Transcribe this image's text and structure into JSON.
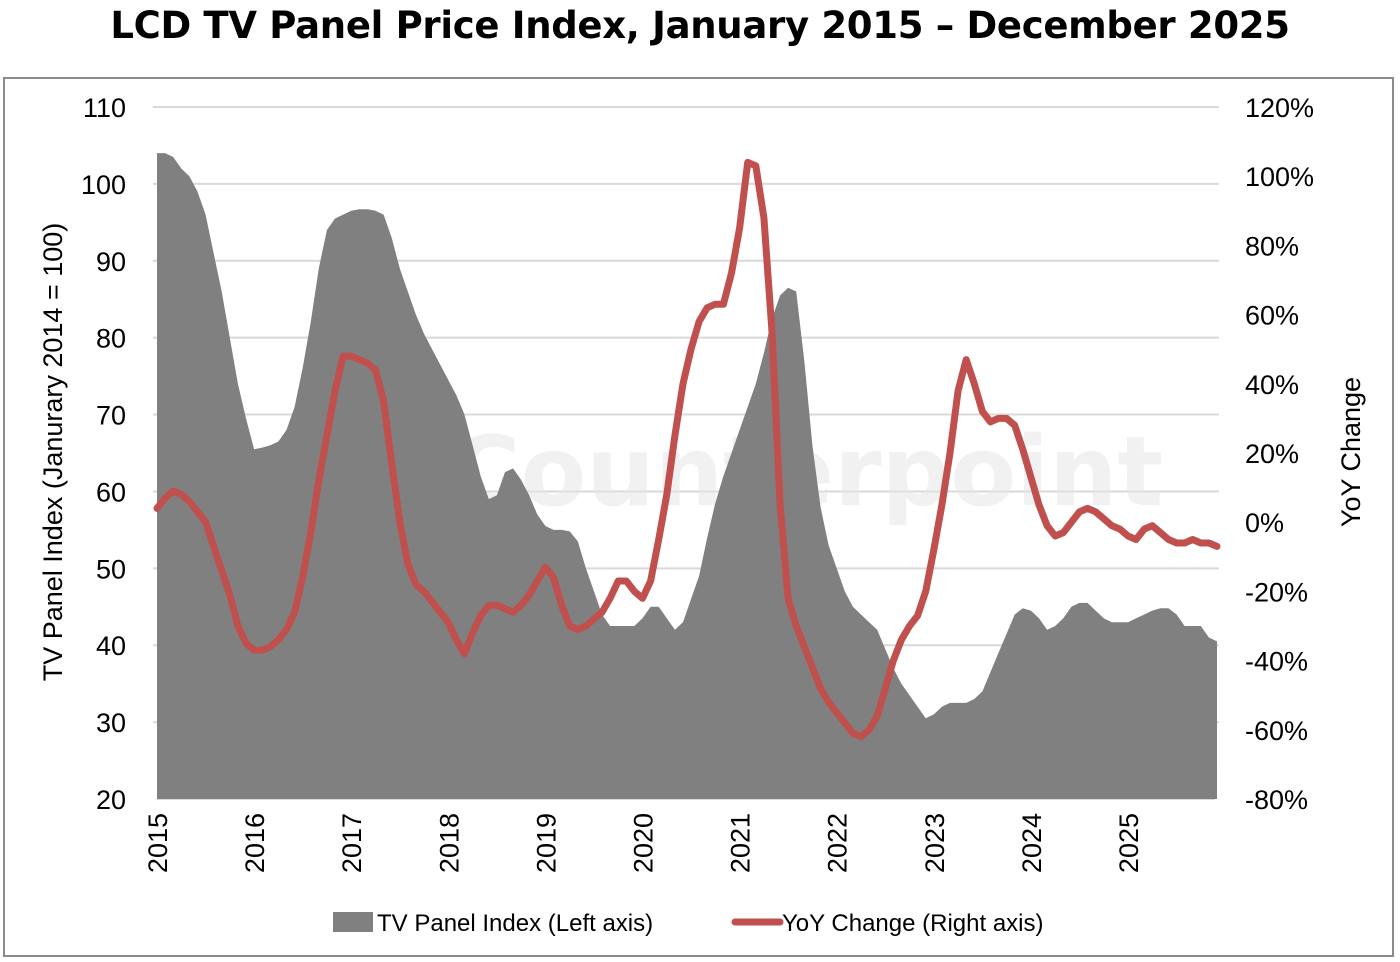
{
  "chart_data": {
    "type": "area+line",
    "title": "LCD TV Panel Price Index, January 2015 – December 2025",
    "watermark": "Counterpoint",
    "x_start": "2015-01",
    "x_end": "2025-12",
    "x_tick_labels": [
      "2015",
      "2016",
      "2017",
      "2018",
      "2019",
      "2020",
      "2021",
      "2022",
      "2023",
      "2024",
      "2025"
    ],
    "left_axis": {
      "label": "TV Panel Index (Janurary 2014 = 100)",
      "range": [
        20,
        110
      ],
      "ticks": [
        20,
        30,
        40,
        50,
        60,
        70,
        80,
        90,
        100,
        110
      ]
    },
    "right_axis": {
      "label": "YoY Change",
      "range": [
        -80,
        120
      ],
      "ticks": [
        "-80%",
        "-60%",
        "-40%",
        "-20%",
        "0%",
        "20%",
        "40%",
        "60%",
        "80%",
        "100%",
        "120%"
      ],
      "tick_values": [
        -80,
        -60,
        -40,
        -20,
        0,
        20,
        40,
        60,
        80,
        100,
        120
      ]
    },
    "grid": true,
    "legend_position": "bottom",
    "series": [
      {
        "name": "TV Panel Index (Left axis)",
        "type": "area",
        "axis": "left",
        "color": "#808080",
        "values": [
          104,
          104,
          103.5,
          102,
          101,
          99,
          96,
          91,
          86,
          80,
          74,
          69.5,
          65.5,
          65.7,
          66,
          66.5,
          68,
          71,
          76,
          82,
          89,
          94,
          95.5,
          96,
          96.5,
          96.7,
          96.7,
          96.5,
          96,
          93,
          89,
          86,
          83,
          80.5,
          78.5,
          76.5,
          74.5,
          72.5,
          70,
          66,
          62,
          59,
          59.5,
          62.5,
          63,
          61.5,
          59.5,
          57,
          55.5,
          55,
          55,
          54.8,
          53.5,
          50,
          47,
          44,
          42.5,
          42.5,
          42.5,
          42.5,
          43.5,
          45,
          45,
          43.5,
          42,
          43,
          46,
          49,
          54,
          58.5,
          62,
          65,
          68,
          71,
          74,
          78,
          82.5,
          85.5,
          86.5,
          86,
          77,
          66,
          58,
          53,
          50,
          47,
          45,
          44,
          43,
          42,
          39.5,
          37,
          35,
          33.5,
          32,
          30.5,
          31,
          32,
          32.5,
          32.5,
          32.5,
          33,
          34,
          36.5,
          39,
          41.5,
          44,
          44.8,
          44.5,
          43.5,
          42,
          42.5,
          43.5,
          45,
          45.5,
          45.5,
          44.5,
          43.5,
          43,
          43,
          43,
          43.5,
          44,
          44.5,
          44.8,
          44.8,
          44,
          42.5,
          42.5,
          42.5,
          41,
          40.5
        ]
      },
      {
        "name": "YoY Change (Right axis)",
        "type": "line",
        "axis": "right",
        "unit": "%",
        "color": "#c0504d",
        "values": [
          4,
          7,
          9,
          8,
          6,
          3,
          0,
          -7,
          -14,
          -21,
          -30,
          -35,
          -37,
          -37,
          -36,
          -34,
          -31,
          -26,
          -16,
          -3,
          12,
          25,
          38,
          48,
          48,
          47,
          46,
          44,
          35,
          17,
          0,
          -12,
          -18,
          -20,
          -23,
          -26,
          -29,
          -34,
          -38,
          -32,
          -27,
          -24,
          -24,
          -25,
          -26,
          -24,
          -21,
          -17,
          -13,
          -16,
          -24,
          -30,
          -31,
          -30,
          -28,
          -26,
          -22,
          -17,
          -17,
          -20,
          -22,
          -17,
          -5,
          8,
          25,
          40,
          50,
          58,
          62,
          63,
          63,
          72,
          85,
          104,
          103,
          88,
          55,
          5,
          -22,
          -30,
          -36,
          -42,
          -48,
          -52,
          -55,
          -58,
          -61,
          -62,
          -60,
          -56,
          -48,
          -40,
          -34,
          -30,
          -27,
          -20,
          -8,
          5,
          20,
          38,
          47,
          40,
          32,
          29,
          30,
          30,
          28,
          21,
          13,
          5,
          -1,
          -4,
          -3,
          0,
          3,
          4,
          3,
          1,
          -1,
          -2,
          -4,
          -5,
          -2,
          -1,
          -3,
          -5,
          -6,
          -6,
          -5,
          -6,
          -6,
          -7
        ]
      }
    ]
  }
}
